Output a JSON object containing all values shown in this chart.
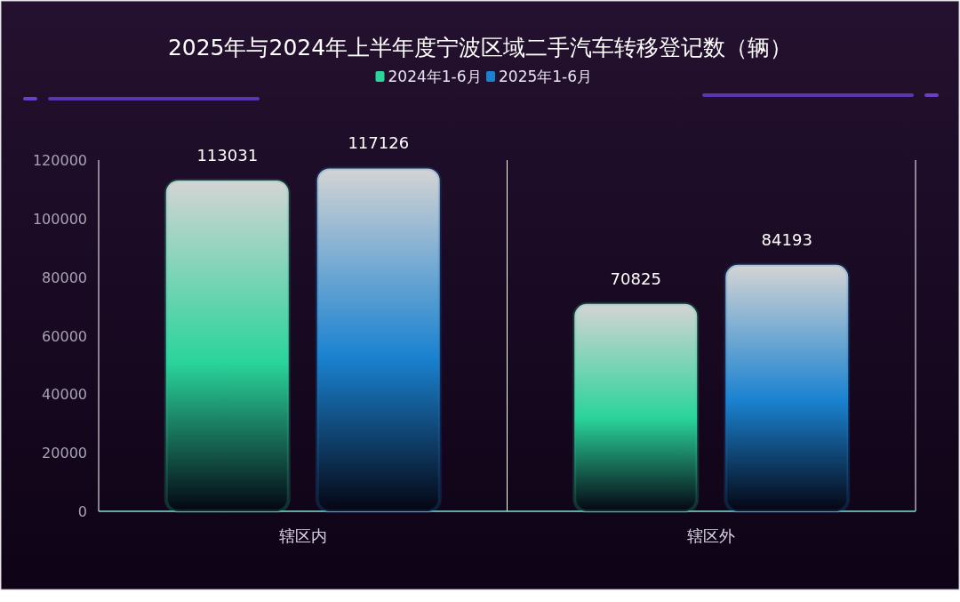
{
  "chart_data": {
    "type": "bar",
    "title": "2025年与2024年上半年度宁波区域二手汽车转移登记数（辆）",
    "categories": [
      "辖区内",
      "辖区外"
    ],
    "series": [
      {
        "name": "2024年1-6月",
        "color": "#2ad49a",
        "values": [
          113031,
          70825
        ]
      },
      {
        "name": "2025年1-6月",
        "color": "#1a82d0",
        "values": [
          117126,
          84193
        ]
      }
    ],
    "ylim": [
      0,
      120000
    ],
    "yticks": [
      0,
      20000,
      40000,
      60000,
      80000,
      100000,
      120000
    ],
    "grid": "x",
    "legend": "top",
    "data_labels": true
  }
}
